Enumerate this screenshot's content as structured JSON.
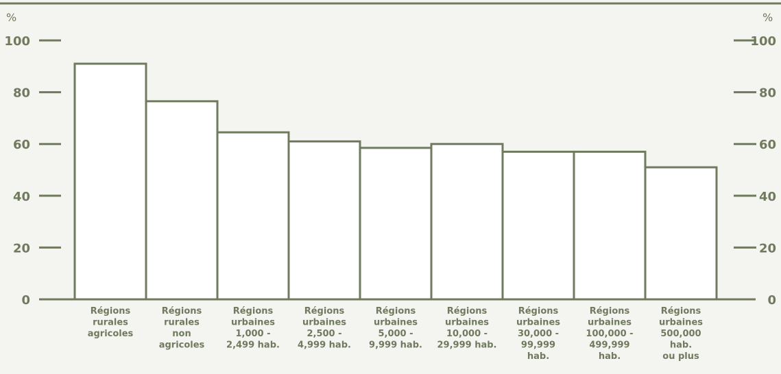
{
  "colors": {
    "ink": "#6f7a5e",
    "background": "#f4f4f0",
    "bar_fill": "#ffffff"
  },
  "chart_data": {
    "type": "bar",
    "unit_left": "%",
    "unit_right": "%",
    "ylim": [
      0,
      100
    ],
    "yticks": [
      0,
      20,
      40,
      60,
      80,
      100
    ],
    "grid": false,
    "legend": "none",
    "categories": [
      [
        "Régions",
        "rurales",
        "agricoles"
      ],
      [
        "Régions",
        "rurales",
        "non",
        "agricoles"
      ],
      [
        "Régions",
        "urbaines",
        "1,000 -",
        "2,499 hab."
      ],
      [
        "Régions",
        "urbaines",
        "2,500 -",
        "4,999 hab."
      ],
      [
        "Régions",
        "urbaines",
        "5,000 -",
        "9,999 hab."
      ],
      [
        "Régions",
        "urbaines",
        "10,000 -",
        "29,999 hab."
      ],
      [
        "Régions",
        "urbaines",
        "30,000 -",
        "99,999",
        "hab."
      ],
      [
        "Régions",
        "urbaines",
        "100,000 -",
        "499,999",
        "hab."
      ],
      [
        "Régions",
        "urbaines",
        "500,000",
        "hab.",
        "ou plus"
      ]
    ],
    "values": [
      91,
      76.5,
      64.5,
      61,
      58.5,
      60,
      57,
      57,
      51
    ]
  }
}
